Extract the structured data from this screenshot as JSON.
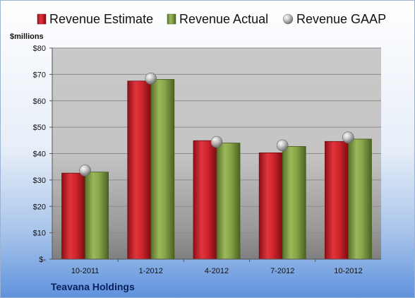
{
  "chart_data": {
    "type": "bar",
    "company": "Teavana Holdings",
    "ylabel": "$millions",
    "categories": [
      "10-2011",
      "1-2012",
      "4-2012",
      "7-2012",
      "10-2012"
    ],
    "ylim": [
      0,
      80
    ],
    "yticks": [
      {
        "value": 0,
        "label": "$-"
      },
      {
        "value": 10,
        "label": "$10"
      },
      {
        "value": 20,
        "label": "$20"
      },
      {
        "value": 30,
        "label": "$30"
      },
      {
        "value": 40,
        "label": "$40"
      },
      {
        "value": 50,
        "label": "$50"
      },
      {
        "value": 60,
        "label": "$60"
      },
      {
        "value": 70,
        "label": "$70"
      },
      {
        "value": 80,
        "label": "$80"
      }
    ],
    "grid": true,
    "legend_position": "top",
    "series": [
      {
        "name": "Revenue Estimate",
        "kind": "bar",
        "color": "#c0202a",
        "values": [
          32.6,
          67.5,
          44.9,
          40.3,
          44.6
        ]
      },
      {
        "name": "Revenue Actual",
        "kind": "bar",
        "color": "#7d9a3c",
        "values": [
          33.0,
          68.1,
          44.0,
          42.7,
          45.5
        ]
      },
      {
        "name": "Revenue GAAP",
        "kind": "marker",
        "color": "#b0b0b0",
        "values": [
          33.6,
          68.4,
          44.4,
          43.1,
          46.1
        ]
      }
    ]
  }
}
